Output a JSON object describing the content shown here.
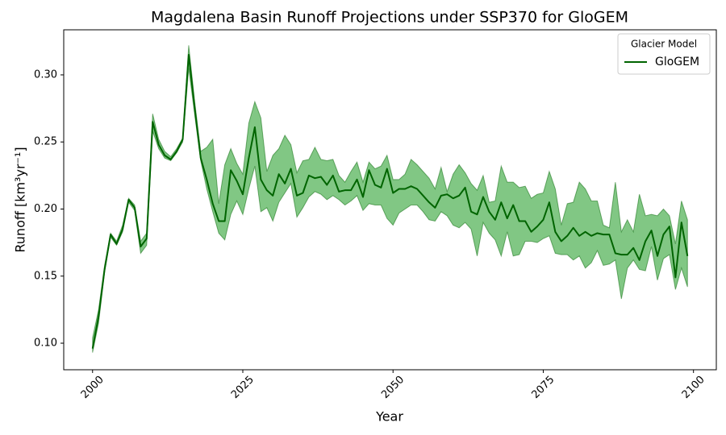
{
  "chart_data": {
    "type": "line",
    "title": "Magdalena Basin Runoff Projections under SSP370 for GloGEM",
    "x_label": "Year",
    "y_label": "Runoff [km³yr⁻¹]",
    "legend_title": "Glacier Model",
    "legend_position": "upper right",
    "x": [
      2000,
      2001,
      2002,
      2003,
      2004,
      2005,
      2006,
      2007,
      2008,
      2009,
      2010,
      2011,
      2012,
      2013,
      2014,
      2015,
      2016,
      2017,
      2018,
      2019,
      2020,
      2021,
      2022,
      2023,
      2024,
      2025,
      2026,
      2027,
      2028,
      2029,
      2030,
      2031,
      2032,
      2033,
      2034,
      2035,
      2036,
      2037,
      2038,
      2039,
      2040,
      2041,
      2042,
      2043,
      2044,
      2045,
      2046,
      2047,
      2048,
      2049,
      2050,
      2051,
      2052,
      2053,
      2054,
      2055,
      2056,
      2057,
      2058,
      2059,
      2060,
      2061,
      2062,
      2063,
      2064,
      2065,
      2066,
      2067,
      2068,
      2069,
      2070,
      2071,
      2072,
      2073,
      2074,
      2075,
      2076,
      2077,
      2078,
      2079,
      2080,
      2081,
      2082,
      2083,
      2084,
      2085,
      2086,
      2087,
      2088,
      2089,
      2090,
      2091,
      2092,
      2093,
      2094,
      2095,
      2096,
      2097,
      2098,
      2099
    ],
    "series": [
      {
        "name": "GloGEM",
        "color": "#006400",
        "band_color": "#4caf50",
        "values": [
          0.096,
          0.12,
          0.155,
          0.181,
          0.174,
          0.185,
          0.207,
          0.201,
          0.172,
          0.178,
          0.265,
          0.248,
          0.24,
          0.237,
          0.243,
          0.252,
          0.315,
          0.275,
          0.238,
          0.222,
          0.204,
          0.191,
          0.191,
          0.229,
          0.221,
          0.211,
          0.238,
          0.261,
          0.222,
          0.214,
          0.21,
          0.226,
          0.219,
          0.23,
          0.21,
          0.212,
          0.225,
          0.223,
          0.224,
          0.218,
          0.225,
          0.213,
          0.214,
          0.214,
          0.222,
          0.209,
          0.229,
          0.218,
          0.216,
          0.23,
          0.212,
          0.215,
          0.215,
          0.217,
          0.215,
          0.21,
          0.205,
          0.201,
          0.21,
          0.211,
          0.208,
          0.21,
          0.216,
          0.198,
          0.196,
          0.209,
          0.198,
          0.192,
          0.205,
          0.193,
          0.203,
          0.191,
          0.191,
          0.183,
          0.187,
          0.192,
          0.205,
          0.183,
          0.176,
          0.18,
          0.186,
          0.18,
          0.183,
          0.18,
          0.182,
          0.181,
          0.181,
          0.167,
          0.166,
          0.166,
          0.171,
          0.162,
          0.176,
          0.184,
          0.165,
          0.181,
          0.187,
          0.149,
          0.19,
          0.165
        ],
        "lower": [
          0.093,
          0.115,
          0.153,
          0.179,
          0.173,
          0.183,
          0.205,
          0.199,
          0.167,
          0.173,
          0.258,
          0.245,
          0.238,
          0.236,
          0.242,
          0.25,
          0.305,
          0.27,
          0.236,
          0.215,
          0.198,
          0.182,
          0.177,
          0.196,
          0.206,
          0.196,
          0.215,
          0.232,
          0.198,
          0.201,
          0.191,
          0.205,
          0.212,
          0.219,
          0.194,
          0.201,
          0.209,
          0.213,
          0.211,
          0.207,
          0.21,
          0.207,
          0.203,
          0.206,
          0.21,
          0.199,
          0.204,
          0.203,
          0.203,
          0.193,
          0.188,
          0.197,
          0.2,
          0.203,
          0.203,
          0.198,
          0.192,
          0.191,
          0.198,
          0.195,
          0.188,
          0.186,
          0.19,
          0.185,
          0.165,
          0.19,
          0.182,
          0.177,
          0.165,
          0.183,
          0.165,
          0.166,
          0.176,
          0.176,
          0.175,
          0.178,
          0.18,
          0.167,
          0.166,
          0.166,
          0.162,
          0.165,
          0.156,
          0.16,
          0.169,
          0.158,
          0.159,
          0.162,
          0.133,
          0.156,
          0.162,
          0.155,
          0.154,
          0.172,
          0.147,
          0.163,
          0.166,
          0.14,
          0.156,
          0.142
        ],
        "upper": [
          0.104,
          0.125,
          0.158,
          0.182,
          0.176,
          0.188,
          0.208,
          0.203,
          0.176,
          0.182,
          0.271,
          0.252,
          0.243,
          0.239,
          0.245,
          0.253,
          0.322,
          0.28,
          0.243,
          0.246,
          0.252,
          0.204,
          0.233,
          0.245,
          0.234,
          0.226,
          0.264,
          0.28,
          0.268,
          0.228,
          0.24,
          0.245,
          0.255,
          0.248,
          0.227,
          0.236,
          0.237,
          0.246,
          0.237,
          0.236,
          0.237,
          0.225,
          0.22,
          0.228,
          0.235,
          0.22,
          0.235,
          0.23,
          0.232,
          0.24,
          0.222,
          0.222,
          0.226,
          0.237,
          0.233,
          0.228,
          0.223,
          0.215,
          0.231,
          0.213,
          0.226,
          0.233,
          0.227,
          0.219,
          0.214,
          0.225,
          0.205,
          0.206,
          0.232,
          0.22,
          0.22,
          0.216,
          0.217,
          0.208,
          0.211,
          0.212,
          0.228,
          0.215,
          0.188,
          0.204,
          0.205,
          0.22,
          0.215,
          0.206,
          0.206,
          0.188,
          0.186,
          0.22,
          0.183,
          0.192,
          0.183,
          0.211,
          0.195,
          0.196,
          0.195,
          0.2,
          0.195,
          0.174,
          0.206,
          0.192
        ]
      }
    ],
    "xlim": [
      1995.2,
      2103.8
    ],
    "ylim": [
      0.0802,
      0.3336
    ],
    "xticks": [
      2000,
      2025,
      2050,
      2075,
      2100
    ],
    "yticks": [
      {
        "value": 0.1,
        "label": "0.10"
      },
      0.15,
      {
        "value": 0.2,
        "label": "0.20"
      },
      0.25,
      {
        "value": 0.3,
        "label": "0.30"
      }
    ],
    "grid": false
  }
}
